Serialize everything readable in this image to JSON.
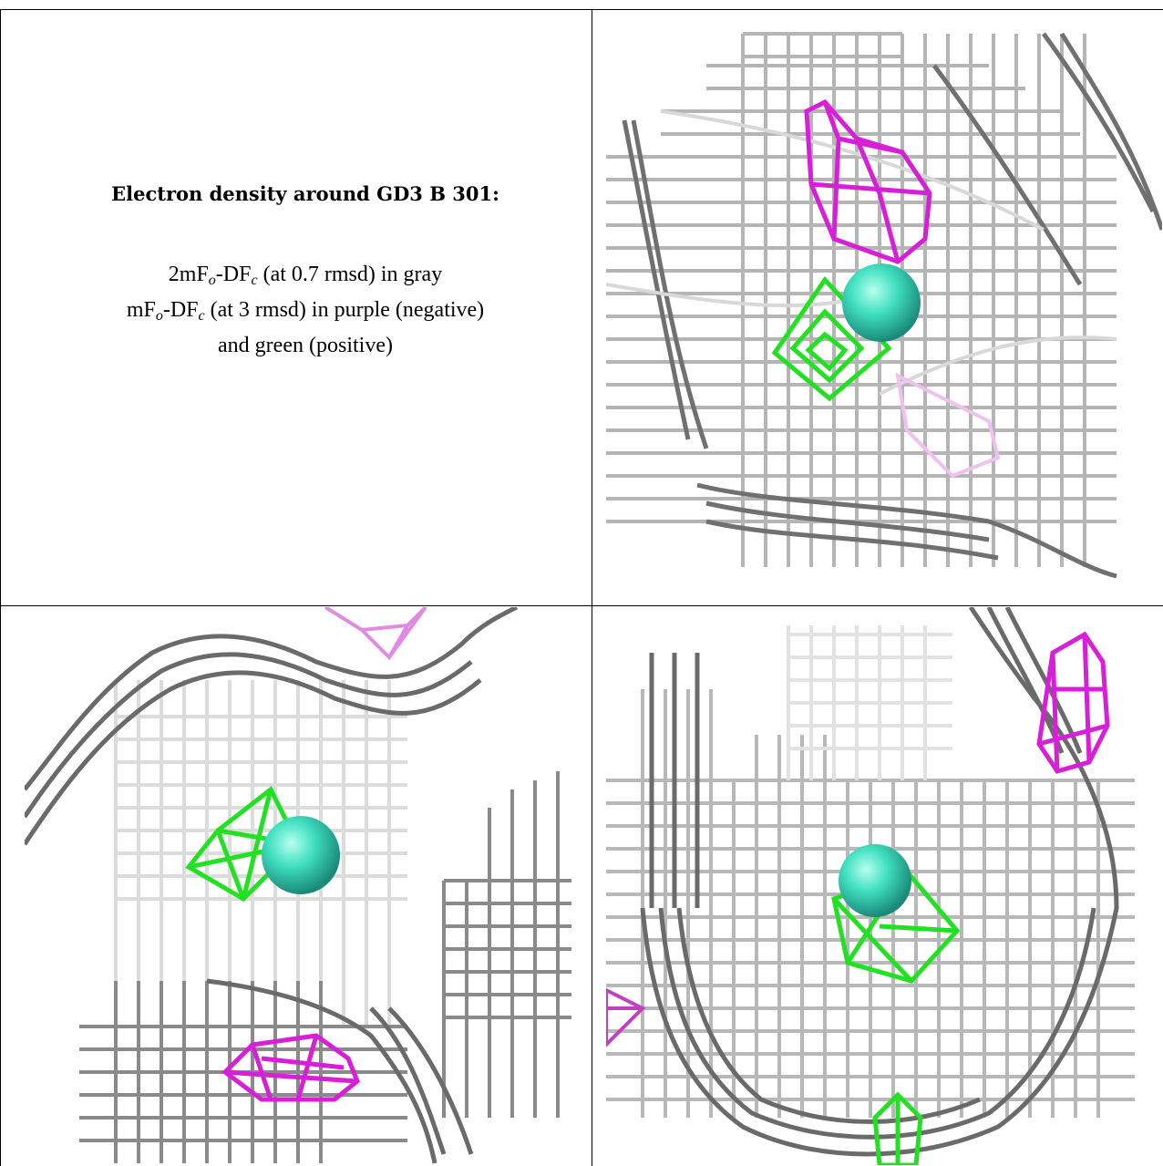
{
  "caption": {
    "title": "Electron density around GD3 B 301:",
    "line1_prefix": "2mF",
    "line1_sub_o": "o",
    "line1_mid": "-DF",
    "line1_sub_c": "c",
    "line1_suffix": " (at 0.7 rmsd) in gray",
    "line2_prefix": "mF",
    "line2_sub_o": "o",
    "line2_mid": "-DF",
    "line2_sub_c": "c",
    "line2_suffix": " (at 3 rmsd) in purple (negative)",
    "line3": "and green (positive)"
  },
  "colors": {
    "map_2fofc": "#a9a9a9",
    "map_fofc_negative": "#d81fd8",
    "map_fofc_positive": "#22e022",
    "ion_sphere": "#40e0c0",
    "border": "#000000"
  },
  "views": [
    {
      "name": "view-top-right",
      "ion": "GD3 B 301"
    },
    {
      "name": "view-bottom-left",
      "ion": "GD3 B 301"
    },
    {
      "name": "view-bottom-right",
      "ion": "GD3 B 301"
    }
  ]
}
